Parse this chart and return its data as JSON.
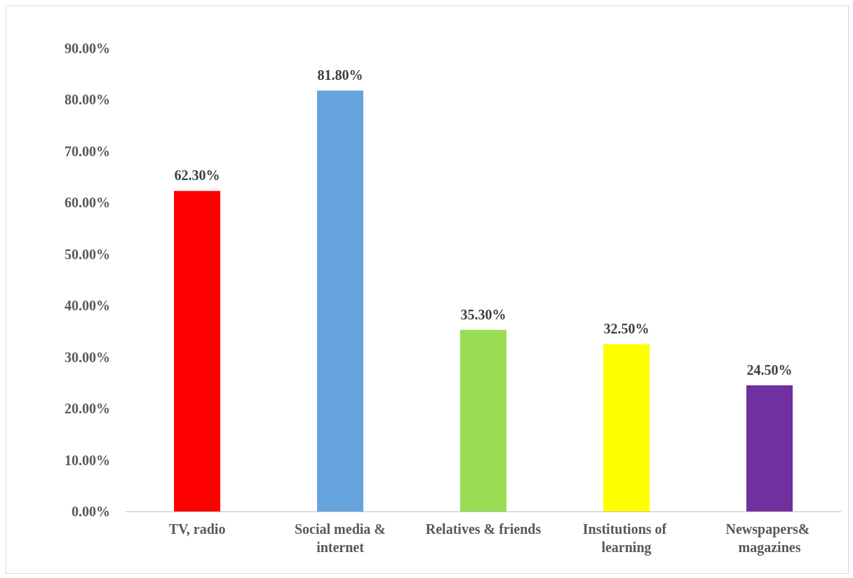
{
  "chart_data": {
    "type": "bar",
    "categories": [
      "TV, radio",
      "Social media &internet",
      "Relatives & friends",
      "Institutions of learning",
      "Newspapers& magazines"
    ],
    "values": [
      62.3,
      81.8,
      35.3,
      32.5,
      24.5
    ],
    "colors": [
      "#ff0000",
      "#66a3dd",
      "#99dd55",
      "#ffff00",
      "#7030a0"
    ],
    "value_labels": [
      "62.30%",
      "81.80%",
      "35.30%",
      "32.50%",
      "24.50%"
    ],
    "ylim": [
      0,
      90
    ],
    "yticks": [
      {
        "value": 0,
        "label": "0.00%"
      },
      {
        "value": 10,
        "label": "10.00%"
      },
      {
        "value": 20,
        "label": "20.00%"
      },
      {
        "value": 30,
        "label": "30.00%"
      },
      {
        "value": 40,
        "label": "40.00%"
      },
      {
        "value": 50,
        "label": "50.00%"
      },
      {
        "value": 60,
        "label": "60.00%"
      },
      {
        "value": 70,
        "label": "70.00%"
      },
      {
        "value": 80,
        "label": "80.00%"
      },
      {
        "value": 90,
        "label": "90.00%"
      }
    ],
    "grid": false
  }
}
